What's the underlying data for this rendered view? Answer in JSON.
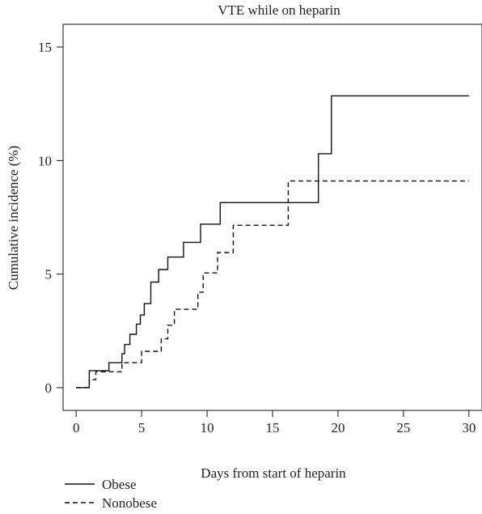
{
  "chart_data": {
    "type": "line",
    "title": "VTE while on heparin",
    "xlabel": "Days from start of heparin",
    "ylabel": "Cumulative incidence (%)",
    "xlim": [
      -1,
      31
    ],
    "ylim": [
      -1,
      16
    ],
    "xticks": [
      0,
      5,
      10,
      15,
      20,
      25,
      30
    ],
    "yticks": [
      0,
      5,
      10,
      15
    ],
    "legend_position": "bottom-left",
    "series": [
      {
        "name": "Obese",
        "style": "solid",
        "color": "#111111",
        "x": [
          0,
          0.5,
          1,
          2.5,
          3.5,
          3.7,
          4.1,
          4.6,
          4.9,
          5.2,
          5.7,
          6.3,
          7,
          8.2,
          9.5,
          11,
          18.5,
          19.5,
          30
        ],
        "y": [
          0,
          0,
          0.75,
          1.1,
          1.5,
          1.9,
          2.35,
          2.8,
          3.2,
          3.7,
          4.65,
          5.2,
          5.75,
          6.4,
          7.2,
          8.15,
          10.3,
          12.85,
          12.85
        ]
      },
      {
        "name": "Nonobese",
        "style": "dashed",
        "color": "#111111",
        "x": [
          0,
          1,
          1.5,
          2,
          3.5,
          5,
          6.5,
          7,
          7.5,
          9.3,
          9.7,
          10.2,
          10.8,
          12,
          16.2,
          30
        ],
        "y": [
          0,
          0.35,
          0.7,
          0.7,
          1.1,
          1.6,
          2.15,
          2.75,
          3.45,
          4.2,
          5.05,
          5.05,
          5.95,
          7.15,
          9.1,
          9.1
        ]
      }
    ]
  }
}
